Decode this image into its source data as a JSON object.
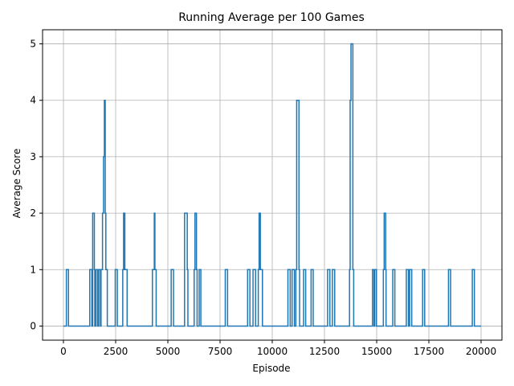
{
  "chart_data": {
    "type": "line",
    "title": "Running Average per 100 Games",
    "xlabel": "Episode",
    "ylabel": "Average Score",
    "xlim": [
      -1000,
      21000
    ],
    "ylim": [
      -0.25,
      5.25
    ],
    "x_ticks": [
      0,
      2500,
      5000,
      7500,
      10000,
      12500,
      15000,
      17500,
      20000
    ],
    "y_ticks": [
      0,
      1,
      2,
      3,
      4,
      5
    ],
    "grid": true,
    "legend": "none",
    "series": [
      {
        "color": "#1f77b4",
        "points": [
          [
            0,
            0
          ],
          [
            140,
            0
          ],
          [
            140,
            1
          ],
          [
            240,
            1
          ],
          [
            240,
            0
          ],
          [
            1260,
            0
          ],
          [
            1260,
            1
          ],
          [
            1360,
            1
          ],
          [
            1360,
            0
          ],
          [
            1400,
            0
          ],
          [
            1400,
            2
          ],
          [
            1480,
            2
          ],
          [
            1480,
            1
          ],
          [
            1500,
            1
          ],
          [
            1500,
            0
          ],
          [
            1560,
            0
          ],
          [
            1560,
            1
          ],
          [
            1640,
            1
          ],
          [
            1640,
            0
          ],
          [
            1690,
            0
          ],
          [
            1690,
            1
          ],
          [
            1770,
            1
          ],
          [
            1770,
            0
          ],
          [
            1800,
            0
          ],
          [
            1800,
            1
          ],
          [
            1870,
            1
          ],
          [
            1870,
            2
          ],
          [
            1920,
            2
          ],
          [
            1920,
            3
          ],
          [
            1960,
            3
          ],
          [
            1960,
            4
          ],
          [
            2000,
            4
          ],
          [
            2000,
            2
          ],
          [
            2030,
            2
          ],
          [
            2030,
            1
          ],
          [
            2100,
            1
          ],
          [
            2100,
            0
          ],
          [
            2480,
            0
          ],
          [
            2480,
            1
          ],
          [
            2580,
            1
          ],
          [
            2580,
            0
          ],
          [
            2840,
            0
          ],
          [
            2840,
            1
          ],
          [
            2880,
            1
          ],
          [
            2880,
            2
          ],
          [
            2940,
            2
          ],
          [
            2940,
            1
          ],
          [
            3050,
            1
          ],
          [
            3050,
            0
          ],
          [
            4260,
            0
          ],
          [
            4260,
            1
          ],
          [
            4350,
            1
          ],
          [
            4350,
            2
          ],
          [
            4380,
            2
          ],
          [
            4380,
            1
          ],
          [
            4440,
            1
          ],
          [
            4440,
            0
          ],
          [
            5160,
            0
          ],
          [
            5160,
            1
          ],
          [
            5270,
            1
          ],
          [
            5270,
            0
          ],
          [
            5800,
            0
          ],
          [
            5800,
            2
          ],
          [
            5930,
            2
          ],
          [
            5930,
            1
          ],
          [
            5960,
            1
          ],
          [
            5960,
            0
          ],
          [
            6260,
            0
          ],
          [
            6260,
            1
          ],
          [
            6300,
            1
          ],
          [
            6300,
            2
          ],
          [
            6370,
            2
          ],
          [
            6370,
            1
          ],
          [
            6400,
            1
          ],
          [
            6400,
            0
          ],
          [
            6500,
            0
          ],
          [
            6500,
            1
          ],
          [
            6580,
            1
          ],
          [
            6580,
            0
          ],
          [
            7750,
            0
          ],
          [
            7750,
            1
          ],
          [
            7860,
            1
          ],
          [
            7860,
            0
          ],
          [
            8820,
            0
          ],
          [
            8820,
            1
          ],
          [
            8930,
            1
          ],
          [
            8930,
            0
          ],
          [
            9080,
            0
          ],
          [
            9080,
            1
          ],
          [
            9200,
            1
          ],
          [
            9200,
            0
          ],
          [
            9330,
            0
          ],
          [
            9330,
            1
          ],
          [
            9370,
            1
          ],
          [
            9370,
            2
          ],
          [
            9430,
            2
          ],
          [
            9430,
            1
          ],
          [
            9530,
            1
          ],
          [
            9530,
            0
          ],
          [
            10750,
            0
          ],
          [
            10750,
            1
          ],
          [
            10860,
            1
          ],
          [
            10860,
            0
          ],
          [
            10950,
            0
          ],
          [
            10950,
            1
          ],
          [
            11060,
            1
          ],
          [
            11060,
            0
          ],
          [
            11130,
            0
          ],
          [
            11130,
            1
          ],
          [
            11170,
            1
          ],
          [
            11170,
            4
          ],
          [
            11280,
            4
          ],
          [
            11280,
            1
          ],
          [
            11310,
            1
          ],
          [
            11310,
            0
          ],
          [
            11500,
            0
          ],
          [
            11500,
            1
          ],
          [
            11600,
            1
          ],
          [
            11600,
            0
          ],
          [
            11860,
            0
          ],
          [
            11860,
            1
          ],
          [
            11960,
            1
          ],
          [
            11960,
            0
          ],
          [
            12650,
            0
          ],
          [
            12650,
            1
          ],
          [
            12760,
            1
          ],
          [
            12760,
            0
          ],
          [
            12880,
            0
          ],
          [
            12880,
            1
          ],
          [
            12990,
            1
          ],
          [
            12990,
            0
          ],
          [
            13700,
            0
          ],
          [
            13700,
            1
          ],
          [
            13730,
            1
          ],
          [
            13730,
            4
          ],
          [
            13770,
            4
          ],
          [
            13770,
            5
          ],
          [
            13860,
            5
          ],
          [
            13860,
            1
          ],
          [
            13900,
            1
          ],
          [
            13900,
            0
          ],
          [
            14800,
            0
          ],
          [
            14800,
            1
          ],
          [
            14870,
            1
          ],
          [
            14870,
            0
          ],
          [
            14910,
            0
          ],
          [
            14910,
            1
          ],
          [
            14990,
            1
          ],
          [
            14990,
            0
          ],
          [
            15320,
            0
          ],
          [
            15320,
            1
          ],
          [
            15360,
            1
          ],
          [
            15360,
            2
          ],
          [
            15430,
            2
          ],
          [
            15430,
            1
          ],
          [
            15450,
            1
          ],
          [
            15450,
            0
          ],
          [
            15770,
            0
          ],
          [
            15770,
            1
          ],
          [
            15870,
            1
          ],
          [
            15870,
            0
          ],
          [
            16420,
            0
          ],
          [
            16420,
            1
          ],
          [
            16520,
            1
          ],
          [
            16520,
            0
          ],
          [
            16580,
            0
          ],
          [
            16580,
            1
          ],
          [
            16680,
            1
          ],
          [
            16680,
            0
          ],
          [
            17200,
            0
          ],
          [
            17200,
            1
          ],
          [
            17300,
            1
          ],
          [
            17300,
            0
          ],
          [
            18440,
            0
          ],
          [
            18440,
            1
          ],
          [
            18540,
            1
          ],
          [
            18540,
            0
          ],
          [
            19580,
            0
          ],
          [
            19580,
            1
          ],
          [
            19680,
            1
          ],
          [
            19680,
            0
          ],
          [
            20000,
            0
          ]
        ]
      }
    ]
  }
}
